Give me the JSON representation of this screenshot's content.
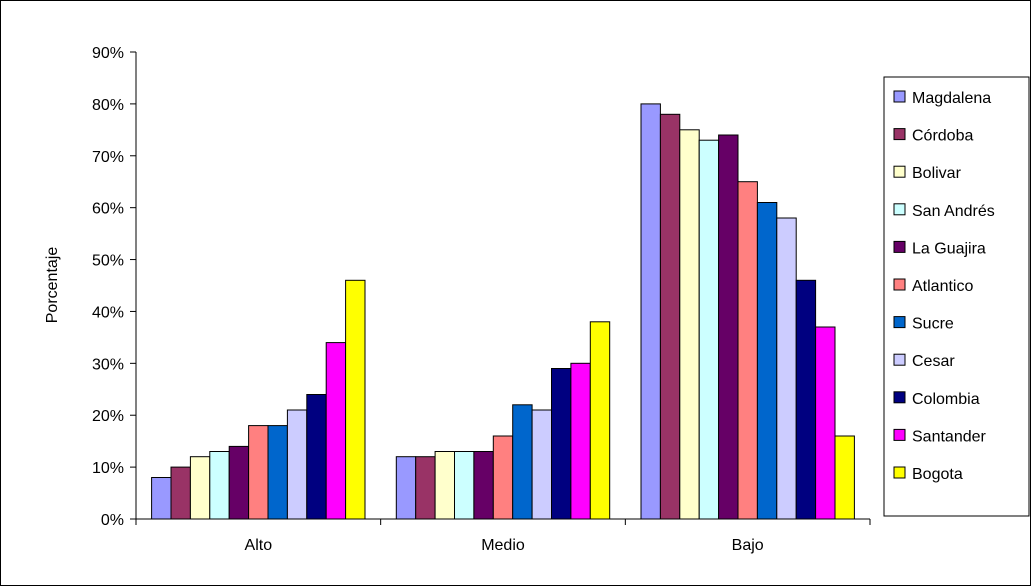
{
  "chart_data": {
    "type": "bar",
    "title": "",
    "xlabel": "",
    "ylabel": "Porcentaje",
    "ylim": [
      0,
      90
    ],
    "y_tick_step": 10,
    "y_tick_format": "percent",
    "grid": false,
    "legend_position": "right",
    "categories": [
      "Alto",
      "Medio",
      "Bajo"
    ],
    "series": [
      {
        "name": "Magdalena",
        "color": "#9999ff",
        "values": [
          8,
          12,
          80
        ]
      },
      {
        "name": "Córdoba",
        "color": "#993366",
        "values": [
          10,
          12,
          78
        ]
      },
      {
        "name": "Bolivar",
        "color": "#ffffcc",
        "values": [
          12,
          13,
          75
        ]
      },
      {
        "name": "San Andrés",
        "color": "#ccffff",
        "values": [
          13,
          13,
          73
        ]
      },
      {
        "name": "La Guajira",
        "color": "#660066",
        "values": [
          14,
          13,
          74
        ]
      },
      {
        "name": "Atlantico",
        "color": "#ff8080",
        "values": [
          18,
          16,
          65
        ]
      },
      {
        "name": "Sucre",
        "color": "#0066cc",
        "values": [
          18,
          22,
          61
        ]
      },
      {
        "name": "Cesar",
        "color": "#ccccff",
        "values": [
          21,
          21,
          58
        ]
      },
      {
        "name": "Colombia",
        "color": "#000080",
        "values": [
          24,
          29,
          46
        ]
      },
      {
        "name": "Santander",
        "color": "#ff00ff",
        "values": [
          34,
          30,
          37
        ]
      },
      {
        "name": "Bogota",
        "color": "#ffff00",
        "values": [
          46,
          38,
          16
        ]
      }
    ]
  }
}
